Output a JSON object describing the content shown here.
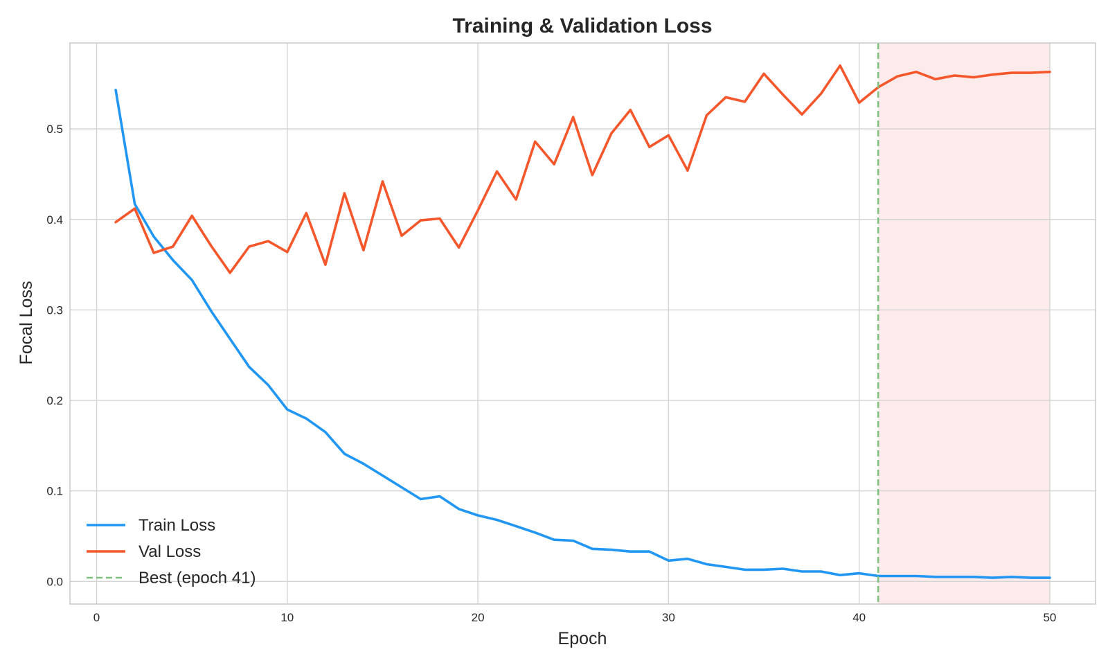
{
  "chart_data": {
    "type": "line",
    "title": "Training & Validation Loss",
    "xlabel": "Epoch",
    "ylabel": "Focal Loss",
    "xlim": [
      -1.4,
      52.4
    ],
    "ylim": [
      -0.025,
      0.595
    ],
    "xticks": [
      0,
      10,
      20,
      30,
      40,
      50
    ],
    "yticks": [
      0.0,
      0.1,
      0.2,
      0.3,
      0.4,
      0.5
    ],
    "grid": true,
    "legend_position": "lower-left",
    "x": [
      1,
      2,
      3,
      4,
      5,
      6,
      7,
      8,
      9,
      10,
      11,
      12,
      13,
      14,
      15,
      16,
      17,
      18,
      19,
      20,
      21,
      22,
      23,
      24,
      25,
      26,
      27,
      28,
      29,
      30,
      31,
      32,
      33,
      34,
      35,
      36,
      37,
      38,
      39,
      40,
      41,
      42,
      43,
      44,
      45,
      46,
      47,
      48,
      49,
      50
    ],
    "series": [
      {
        "name": "Train Loss",
        "color": "#2196F3",
        "style": "solid",
        "values": [
          0.543,
          0.417,
          0.381,
          0.355,
          0.333,
          0.299,
          0.268,
          0.237,
          0.217,
          0.19,
          0.18,
          0.165,
          0.141,
          0.13,
          0.117,
          0.104,
          0.091,
          0.094,
          0.08,
          0.073,
          0.068,
          0.061,
          0.054,
          0.046,
          0.045,
          0.036,
          0.035,
          0.033,
          0.033,
          0.023,
          0.025,
          0.019,
          0.016,
          0.013,
          0.013,
          0.014,
          0.011,
          0.011,
          0.007,
          0.009,
          0.006,
          0.006,
          0.006,
          0.005,
          0.005,
          0.005,
          0.004,
          0.005,
          0.004,
          0.004
        ]
      },
      {
        "name": "Val Loss",
        "color": "#F4572B",
        "style": "solid",
        "values": [
          0.397,
          0.412,
          0.363,
          0.37,
          0.404,
          0.371,
          0.341,
          0.37,
          0.376,
          0.364,
          0.407,
          0.35,
          0.429,
          0.366,
          0.442,
          0.382,
          0.399,
          0.401,
          0.369,
          0.41,
          0.453,
          0.422,
          0.486,
          0.461,
          0.513,
          0.449,
          0.495,
          0.521,
          0.48,
          0.493,
          0.454,
          0.515,
          0.535,
          0.53,
          0.561,
          0.538,
          0.516,
          0.539,
          0.57,
          0.529,
          0.546,
          0.558,
          0.563,
          0.555,
          0.559,
          0.557,
          0.56,
          0.562,
          0.562,
          0.563
        ]
      }
    ],
    "best_epoch_line": {
      "label": "Best (epoch 41)",
      "x": 41,
      "color": "#7FBF7F",
      "style": "dashed"
    },
    "shaded_region": {
      "x_start": 41,
      "x_end": 50,
      "color": "#FDEAEA"
    }
  }
}
